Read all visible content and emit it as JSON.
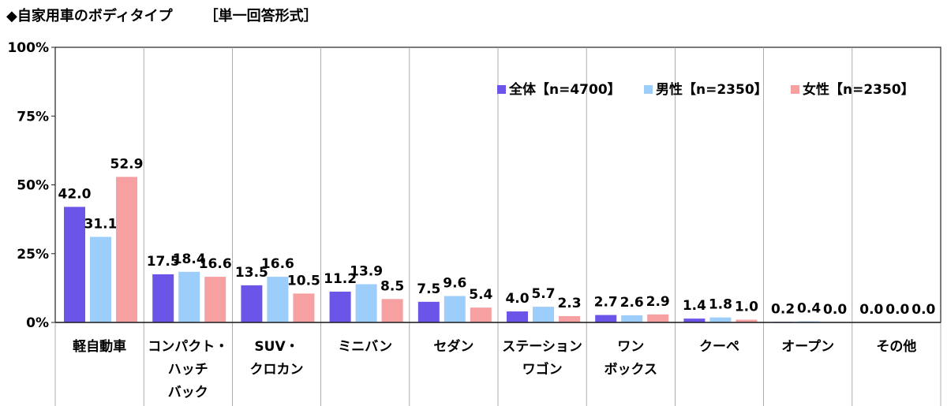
{
  "header": {
    "title": "◆自家用車のボディタイプ",
    "answer_type": "［単一回答形式］"
  },
  "chart_data": {
    "type": "bar",
    "title": "◆自家用車のボディタイプ",
    "subtitle": "［単一回答形式］",
    "ylim": [
      0,
      100
    ],
    "yticks": [
      "0%",
      "25%",
      "50%",
      "75%",
      "100%"
    ],
    "ytick_values": [
      0,
      25,
      50,
      75,
      100
    ],
    "legend_position": "top-right",
    "categories": [
      [
        "軽自動車"
      ],
      [
        "コンパクト・",
        "ハッチ",
        "バック"
      ],
      [
        "SUV・",
        "クロカン"
      ],
      [
        "ミニバン"
      ],
      [
        "セダン"
      ],
      [
        "ステーション",
        "ワゴン"
      ],
      [
        "ワン",
        "ボックス"
      ],
      [
        "クーペ"
      ],
      [
        "オープン"
      ],
      [
        "その他"
      ]
    ],
    "series": [
      {
        "name": "全体【n=4700】",
        "color": "#6a55e8",
        "values": [
          42.0,
          17.5,
          13.5,
          11.2,
          7.5,
          4.0,
          2.7,
          1.4,
          0.2,
          0.0
        ]
      },
      {
        "name": "男性【n=2350】",
        "color": "#9dcdfa",
        "values": [
          31.1,
          18.4,
          16.6,
          13.9,
          9.6,
          5.7,
          2.6,
          1.8,
          0.4,
          0.0
        ]
      },
      {
        "name": "女性【n=2350】",
        "color": "#f7a0a2",
        "values": [
          52.9,
          16.6,
          10.5,
          8.5,
          5.4,
          2.3,
          2.9,
          1.0,
          0.0,
          0.0
        ]
      }
    ]
  }
}
